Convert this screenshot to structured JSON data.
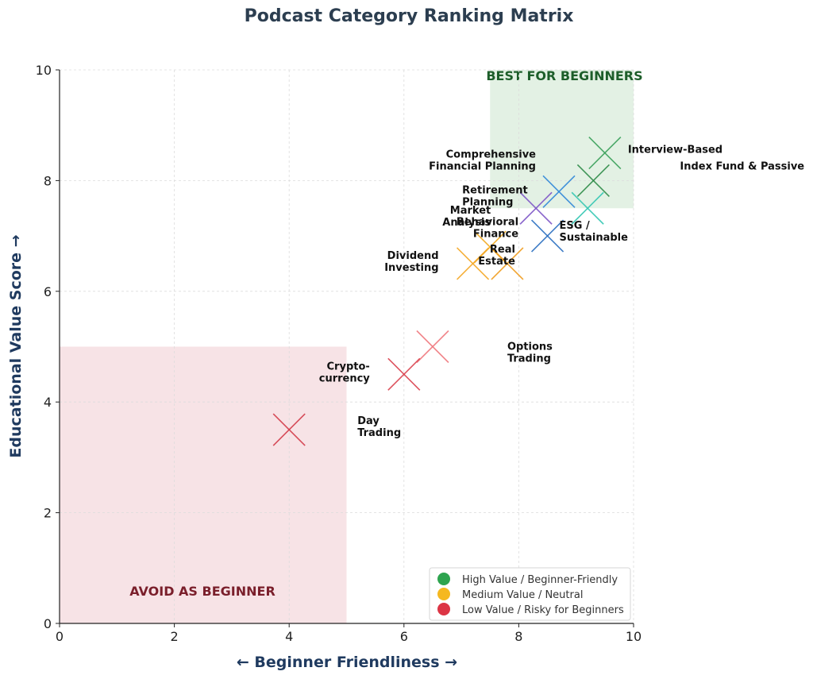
{
  "chart_data": {
    "type": "scatter",
    "title": "Podcast Category Ranking Matrix",
    "xlabel": "← Beginner Friendliness →",
    "ylabel": "Educational Value Score →",
    "xlim": [
      0,
      10
    ],
    "ylim": [
      0,
      10
    ],
    "xticks": [
      "0",
      "2",
      "4",
      "6",
      "8",
      "10"
    ],
    "yticks": [
      "0",
      "2",
      "4",
      "6",
      "8",
      "10"
    ],
    "grid": true,
    "marker": "x",
    "zones": [
      {
        "label": "BEST FOR BEGINNERS",
        "x": [
          7.5,
          10
        ],
        "y": [
          7.5,
          10
        ],
        "fill": "#e3f1e4",
        "text_color": "#1d5e2a"
      },
      {
        "label": "AVOID AS BEGINNER",
        "x": [
          0,
          5
        ],
        "y": [
          0,
          5
        ],
        "fill": "#f7e3e6",
        "text_color": "#7a1f2b"
      }
    ],
    "points": [
      {
        "label": "Interview-Based",
        "x": 9.5,
        "y": 8.5,
        "color": "#3aa05a"
      },
      {
        "label": "Index Fund & Passive",
        "x": 9.3,
        "y": 8.0,
        "color": "#2e8b47"
      },
      {
        "label": "Comprehensive\nFinancial Planning",
        "x": 8.7,
        "y": 7.8,
        "color": "#2f86d8"
      },
      {
        "label": "Retirement\nPlanning",
        "x": 9.2,
        "y": 7.5,
        "color": "#33c6b2"
      },
      {
        "label": "Behavioral\nFinance",
        "x": 8.3,
        "y": 7.5,
        "color": "#7d55c7"
      },
      {
        "label": "ESG /\nSustainable",
        "x": 8.5,
        "y": 7.0,
        "color": "#2a6fc0"
      },
      {
        "label": "Market\nAnalysis",
        "x": 7.5,
        "y": 6.8,
        "color": "#f2a81d"
      },
      {
        "label": "Dividend\nInvesting",
        "x": 7.2,
        "y": 6.5,
        "color": "#f4a623"
      },
      {
        "label": "Real\nEstate",
        "x": 7.8,
        "y": 6.5,
        "color": "#ef9a1a"
      },
      {
        "label": "Options\nTrading",
        "x": 6.5,
        "y": 5.0,
        "color": "#f07a80"
      },
      {
        "label": "Crypto-\ncurrency",
        "x": 6.0,
        "y": 4.5,
        "color": "#d9404c"
      },
      {
        "label": "Day\nTrading",
        "x": 4.0,
        "y": 3.5,
        "color": "#d13a48"
      }
    ],
    "legend": {
      "placement": "lower-right",
      "entries": [
        {
          "label": "High Value / Beginner-Friendly",
          "color": "#2ea44f"
        },
        {
          "label": "Medium Value / Neutral",
          "color": "#f5b820"
        },
        {
          "label": "Low Value / Risky for Beginners",
          "color": "#dc3545"
        }
      ]
    }
  }
}
